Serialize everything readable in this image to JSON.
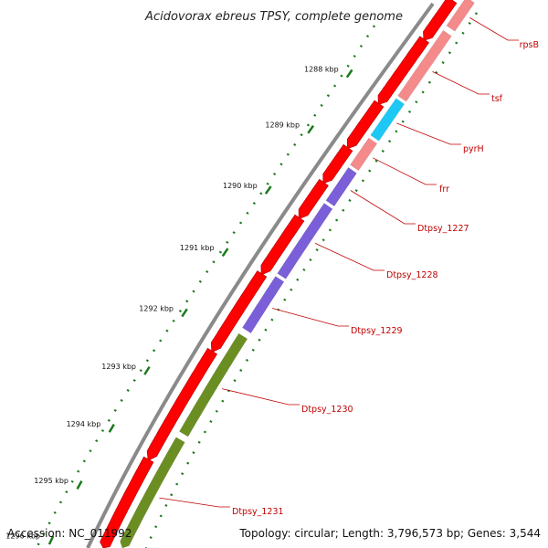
{
  "title": "Acidovorax ebreus TPSY, complete genome",
  "footer": {
    "accession": "Accession: NC_011992",
    "summary": "Topology: circular; Length: 3,796,573 bp; Genes: 3,544"
  },
  "colors": {
    "backbone": "#8a8a8a",
    "forward_cds": "#ff0000",
    "tick": "#1a7a1a",
    "label": "#c00000"
  },
  "ticks": [
    "1288 kbp",
    "1289 kbp",
    "1290 kbp",
    "1291 kbp",
    "1292 kbp",
    "1293 kbp",
    "1294 kbp",
    "1295 kbp",
    "1296 kbp"
  ],
  "genes": [
    {
      "label": "rpsB",
      "color": "#f48a8a"
    },
    {
      "label": "tsf",
      "color": "#f48a8a"
    },
    {
      "label": "pyrH",
      "color": "#1ec8f5"
    },
    {
      "label": "frr",
      "color": "#f48a8a"
    },
    {
      "label": "Dtpsy_1227",
      "color": "#7a5fd8"
    },
    {
      "label": "Dtpsy_1228",
      "color": "#7a5fd8"
    },
    {
      "label": "Dtpsy_1229",
      "color": "#7a5fd8"
    },
    {
      "label": "Dtpsy_1230",
      "color": "#6b8e23"
    },
    {
      "label": "Dtpsy_1231",
      "color": "#6b8e23"
    }
  ]
}
